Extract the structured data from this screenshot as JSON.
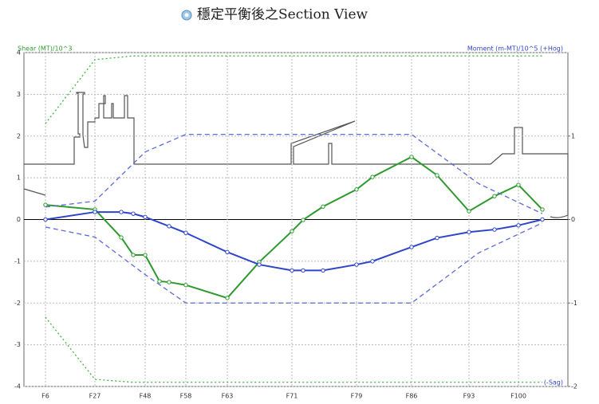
{
  "chart_data": {
    "type": "line",
    "title": "穩定平衡後之Section View",
    "y_label": "Shear (MT)/10^3",
    "y2_label": "Moment (m-MT)/10^5 (+Hog)",
    "y2_bottom_label": "(-Sag)",
    "xlim": [
      0,
      341
    ],
    "xticks": [
      {
        "value": 13.5,
        "label": "F6"
      },
      {
        "value": 44.5,
        "label": "F27"
      },
      {
        "value": 76,
        "label": "F48"
      },
      {
        "value": 101.5,
        "label": "F58"
      },
      {
        "value": 127.5,
        "label": "F63"
      },
      {
        "value": 168,
        "label": "F71"
      },
      {
        "value": 208.5,
        "label": "F79"
      },
      {
        "value": 243,
        "label": "F86"
      },
      {
        "value": 279,
        "label": "F93"
      },
      {
        "value": 310,
        "label": "F100"
      }
    ],
    "ylim": [
      -4,
      4
    ],
    "yticks": [
      -4,
      -3,
      -2,
      -1,
      0,
      1,
      2,
      3,
      4
    ],
    "y2lim": [
      -2,
      2
    ],
    "y2ticks": [
      -2,
      -1,
      0,
      1
    ],
    "grid": true,
    "series": [
      {
        "color": "#2e9a2e",
        "style": "solid",
        "marker": true,
        "x": [
          13.5,
          44.5,
          61,
          68.5,
          76,
          85,
          91,
          101.5,
          127.5,
          147.5,
          168,
          175,
          187.5,
          208.5,
          218.5,
          243,
          259,
          279,
          295,
          310,
          325
        ],
        "values": [
          0.35,
          0.24,
          -0.43,
          -0.85,
          -0.85,
          -1.48,
          -1.5,
          -1.57,
          -1.88,
          -1.02,
          -0.28,
          -0.01,
          0.31,
          0.72,
          1.02,
          1.5,
          1.06,
          0.2,
          0.56,
          0.83,
          0.24
        ]
      },
      {
        "color": "#2f45c8",
        "style": "solid",
        "marker": true,
        "axis": "y2",
        "x": [
          13.5,
          44.5,
          61,
          68.5,
          76,
          91,
          101.5,
          127.5,
          147.5,
          168,
          175,
          187.5,
          208.5,
          218.5,
          243,
          259,
          279,
          295,
          310,
          325
        ],
        "values": [
          0,
          0.09,
          0.09,
          0.07,
          0.03,
          -0.08,
          -0.16,
          -0.39,
          -0.54,
          -0.61,
          -0.61,
          -0.61,
          -0.54,
          -0.5,
          -0.33,
          -0.22,
          -0.15,
          -0.12,
          -0.07,
          0
        ]
      },
      {
        "color": "#3cb43c",
        "style": "dot",
        "marker": false,
        "x": [
          13.5,
          44.5,
          68.5,
          325
        ],
        "values": [
          2.3,
          3.83,
          3.92,
          3.92
        ]
      },
      {
        "color": "#3cb43c",
        "style": "dot",
        "marker": false,
        "x": [
          13.5,
          44.5,
          68.5,
          325
        ],
        "values": [
          -2.34,
          -3.83,
          -3.9,
          -3.9
        ]
      },
      {
        "color": "#5a6ad8",
        "style": "dash",
        "marker": false,
        "axis": "y2",
        "x": [
          13.5,
          44.5,
          76,
          101.5,
          243,
          285,
          325
        ],
        "values": [
          0.15,
          0.22,
          0.81,
          1.02,
          1.02,
          0.43,
          0.07
        ]
      },
      {
        "color": "#5a6ad8",
        "style": "dash",
        "marker": false,
        "axis": "y2",
        "x": [
          13.5,
          44.5,
          76,
          101.5,
          243,
          285,
          325
        ],
        "values": [
          -0.09,
          -0.21,
          -0.66,
          -1,
          -1,
          -0.4,
          -0.04
        ]
      }
    ]
  }
}
